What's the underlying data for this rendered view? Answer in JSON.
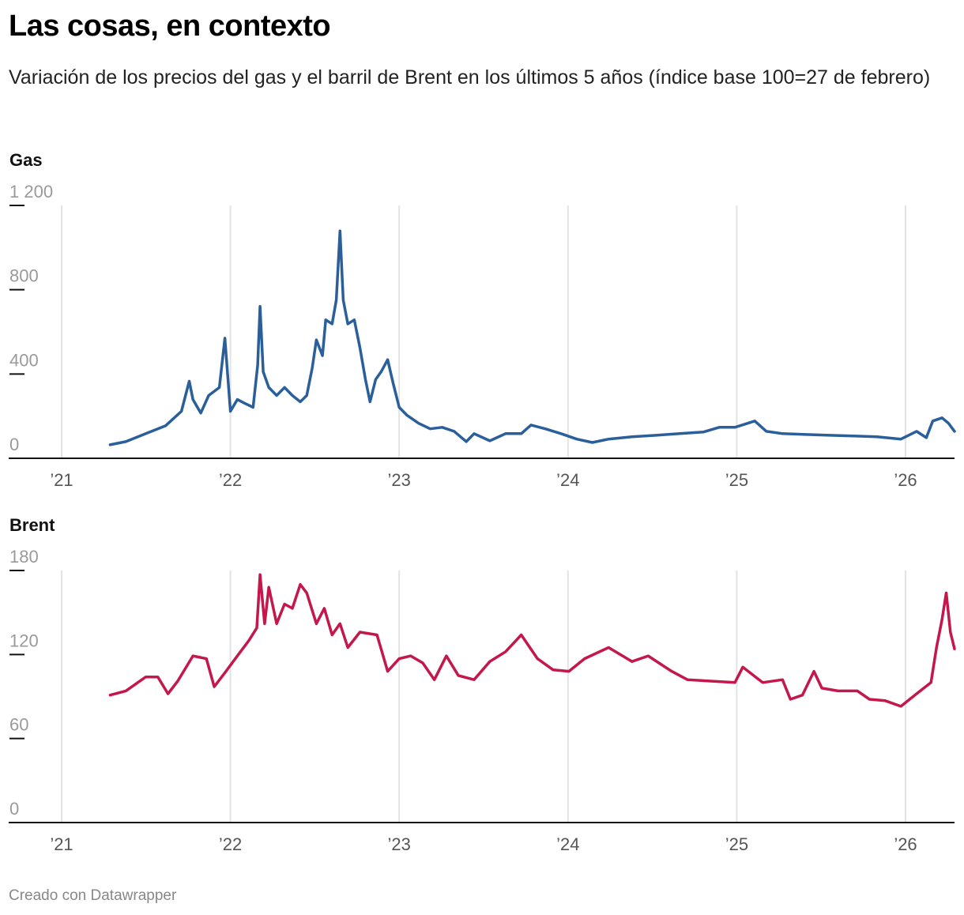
{
  "title": "Las cosas, en contexto",
  "subtitle": "Variación de los precios del gas y el barril de Brent en los últimos 5 años (índice base 100=27 de febrero)",
  "footer": "Creado con Datawrapper",
  "chart_data": [
    {
      "type": "line",
      "title": "Gas",
      "color": "#2a5f9a",
      "ylim": [
        0,
        1200
      ],
      "yticks": [
        0,
        400,
        800,
        1200
      ],
      "ytick_labels": [
        "0",
        "400",
        "800",
        "1 200"
      ],
      "xticks": [
        "2021-01-01",
        "2022-01-01",
        "2023-01-01",
        "2024-01-01",
        "2025-01-01",
        "2026-01-01"
      ],
      "xtick_labels": [
        "’21",
        "’22",
        "’23",
        "’24",
        "’25",
        "’26"
      ],
      "grid": "vertical",
      "x": [
        "2021-04-16",
        "2021-05-20",
        "2021-07-02",
        "2021-08-14",
        "2021-09-17",
        "2021-10-04",
        "2021-10-12",
        "2021-10-29",
        "2021-11-15",
        "2021-12-08",
        "2021-12-20",
        "2022-01-01",
        "2022-01-16",
        "2022-02-02",
        "2022-02-19",
        "2022-03-01",
        "2022-03-06",
        "2022-03-13",
        "2022-03-25",
        "2022-04-11",
        "2022-04-28",
        "2022-05-15",
        "2022-06-01",
        "2022-06-15",
        "2022-06-27",
        "2022-07-06",
        "2022-07-19",
        "2022-07-26",
        "2022-08-09",
        "2022-08-18",
        "2022-08-26",
        "2022-09-02",
        "2022-09-12",
        "2022-09-26",
        "2022-10-08",
        "2022-10-20",
        "2022-10-30",
        "2022-11-11",
        "2022-11-23",
        "2022-12-07",
        "2022-12-19",
        "2023-01-01",
        "2023-01-18",
        "2023-02-12",
        "2023-03-09",
        "2023-04-04",
        "2023-04-30",
        "2023-05-26",
        "2023-06-12",
        "2023-07-16",
        "2023-08-19",
        "2023-09-22",
        "2023-10-13",
        "2023-11-13",
        "2023-12-17",
        "2024-01-20",
        "2024-02-23",
        "2024-03-29",
        "2024-05-19",
        "2024-07-10",
        "2024-08-30",
        "2024-10-21",
        "2024-11-24",
        "2024-12-28",
        "2025-02-09",
        "2025-03-06",
        "2025-04-10",
        "2025-05-31",
        "2025-07-21",
        "2025-09-10",
        "2025-10-31",
        "2025-12-22",
        "2026-01-25",
        "2026-02-15",
        "2026-03-01",
        "2026-03-21",
        "2026-04-04",
        "2026-04-17"
      ],
      "y": [
        64,
        79,
        117,
        155,
        223,
        366,
        279,
        215,
        298,
        336,
        570,
        223,
        279,
        260,
        242,
        442,
        721,
        411,
        336,
        298,
        336,
        298,
        268,
        298,
        430,
        562,
        487,
        657,
        638,
        751,
        1079,
        751,
        638,
        657,
        525,
        374,
        268,
        374,
        411,
        468,
        355,
        242,
        204,
        166,
        140,
        147,
        128,
        79,
        117,
        83,
        117,
        117,
        158,
        140,
        117,
        91,
        75,
        91,
        102,
        109,
        117,
        125,
        147,
        147,
        177,
        128,
        117,
        113,
        109,
        106,
        102,
        91,
        128,
        98,
        177,
        192,
        166,
        128
      ]
    },
    {
      "type": "line",
      "title": "Brent",
      "color": "#c4174b",
      "ylim": [
        0,
        180
      ],
      "yticks": [
        0,
        60,
        120,
        180
      ],
      "ytick_labels": [
        "0",
        "60",
        "120",
        "180"
      ],
      "xticks": [
        "2021-01-01",
        "2022-01-01",
        "2023-01-01",
        "2024-01-01",
        "2025-01-01",
        "2026-01-01"
      ],
      "xtick_labels": [
        "’21",
        "’22",
        "’23",
        "’24",
        "’25",
        "’26"
      ],
      "grid": "vertical",
      "x": [
        "2021-04-16",
        "2021-05-20",
        "2021-07-02",
        "2021-07-28",
        "2021-08-19",
        "2021-09-09",
        "2021-10-12",
        "2021-11-10",
        "2021-11-27",
        "2021-12-20",
        "2022-01-16",
        "2022-02-10",
        "2022-02-27",
        "2022-03-06",
        "2022-03-16",
        "2022-03-25",
        "2022-04-11",
        "2022-04-28",
        "2022-05-15",
        "2022-06-01",
        "2022-06-15",
        "2022-07-06",
        "2022-07-23",
        "2022-08-09",
        "2022-08-26",
        "2022-09-12",
        "2022-10-08",
        "2022-11-14",
        "2022-12-07",
        "2023-01-01",
        "2023-01-26",
        "2023-02-21",
        "2023-03-18",
        "2023-04-13",
        "2023-05-09",
        "2023-06-12",
        "2023-07-16",
        "2023-08-19",
        "2023-09-22",
        "2023-10-27",
        "2023-11-30",
        "2024-01-03",
        "2024-02-06",
        "2024-03-29",
        "2024-05-19",
        "2024-06-23",
        "2024-08-13",
        "2024-09-16",
        "2024-11-06",
        "2024-12-28",
        "2025-01-14",
        "2025-02-26",
        "2025-04-10",
        "2025-04-27",
        "2025-05-23",
        "2025-06-17",
        "2025-07-04",
        "2025-08-08",
        "2025-09-19",
        "2025-10-15",
        "2025-11-18",
        "2025-12-22",
        "2026-01-25",
        "2026-02-25",
        "2026-03-09",
        "2026-03-21",
        "2026-03-30",
        "2026-04-08",
        "2026-04-17"
      ],
      "y": [
        91,
        94,
        104,
        104,
        92,
        101,
        119,
        117,
        97,
        107,
        119,
        130,
        139,
        177,
        142,
        168,
        142,
        156,
        153,
        170,
        164,
        142,
        153,
        134,
        142,
        125,
        136,
        134,
        108,
        117,
        119,
        114,
        102,
        119,
        105,
        102,
        115,
        122,
        134,
        117,
        109,
        108,
        117,
        125,
        115,
        119,
        108,
        102,
        101,
        100,
        111,
        100,
        102,
        88,
        91,
        108,
        96,
        94,
        94,
        88,
        87,
        83,
        92,
        100,
        125,
        145,
        164,
        136,
        124
      ]
    }
  ]
}
